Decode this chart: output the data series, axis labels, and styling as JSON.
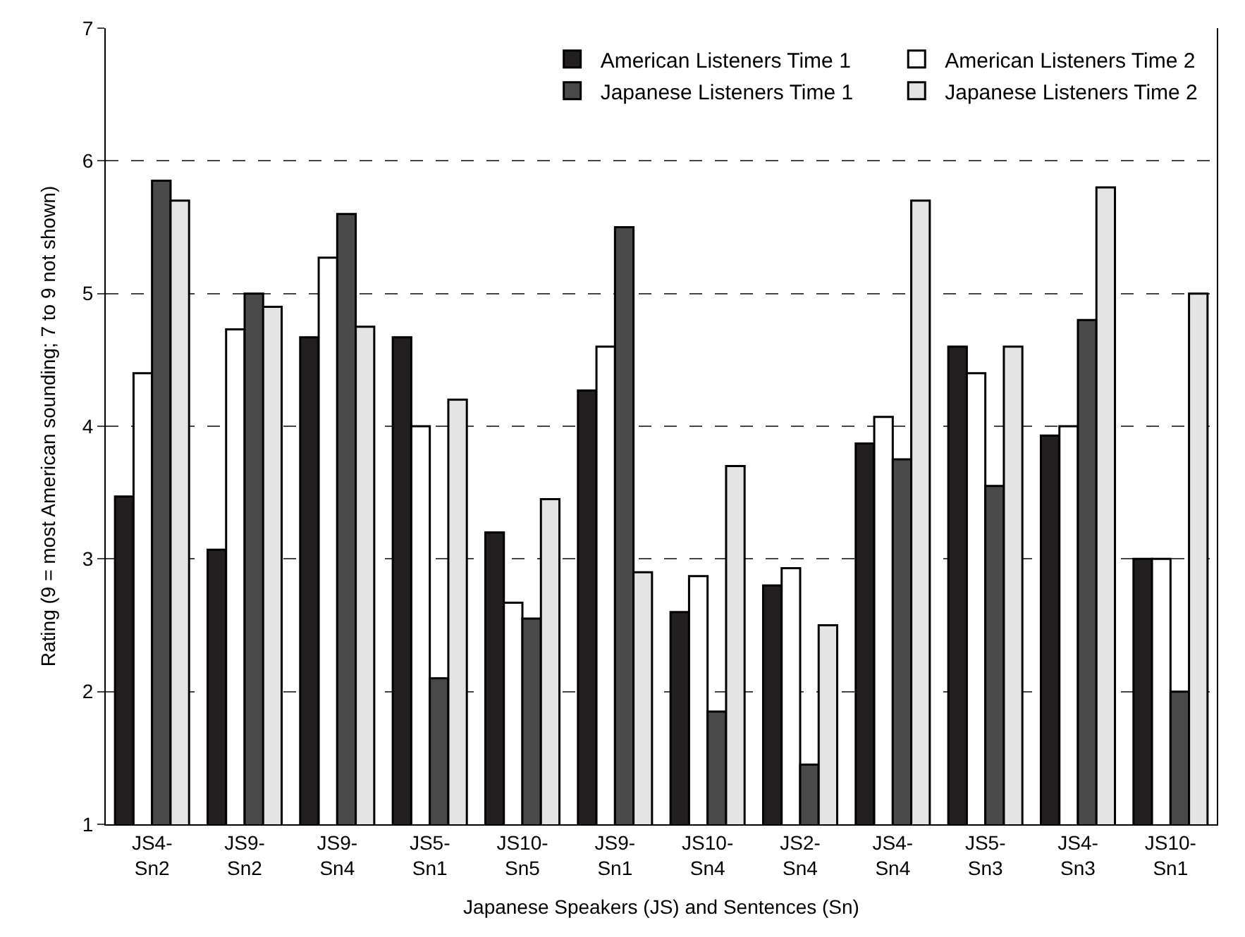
{
  "chart_data": {
    "type": "bar",
    "xlabel": "Japanese Speakers (JS) and Sentences (Sn)",
    "ylabel": "Rating (9 = most American sounding; 7 to 9 not shown)",
    "categories": [
      "JS4-Sn2",
      "JS9-Sn2",
      "JS9-Sn4",
      "JS5-Sn1",
      "JS10-Sn5",
      "JS9-Sn1",
      "JS10-Sn4",
      "JS2-Sn4",
      "JS4-Sn4",
      "JS5-Sn3",
      "JS4-Sn3",
      "JS10-Sn1"
    ],
    "series": [
      {
        "name": "American Listeners Time 1",
        "color": "#231f20",
        "values": [
          3.47,
          3.07,
          4.67,
          4.67,
          3.2,
          4.27,
          2.6,
          2.8,
          3.87,
          4.6,
          3.93,
          3.0
        ]
      },
      {
        "name": "American Listeners Time 2",
        "color": "#ffffff",
        "values": [
          4.4,
          4.73,
          5.27,
          4.0,
          2.67,
          4.6,
          2.87,
          2.93,
          4.07,
          4.4,
          4.0,
          3.0
        ]
      },
      {
        "name": "Japanese Listeners Time 1",
        "color": "#4a4a4a",
        "values": [
          5.85,
          5.0,
          5.6,
          2.1,
          2.55,
          5.5,
          1.85,
          1.45,
          3.75,
          3.55,
          4.8,
          2.0
        ]
      },
      {
        "name": "Japanese Listeners Time 2",
        "color": "#e4e4e4",
        "values": [
          5.7,
          4.9,
          4.75,
          4.2,
          3.45,
          2.9,
          3.7,
          2.5,
          5.7,
          4.6,
          5.8,
          5.0
        ]
      }
    ],
    "ylim": [
      1,
      7
    ],
    "yticks": [
      1,
      2,
      3,
      4,
      5,
      6,
      7
    ],
    "grid": "y",
    "legend": "top right"
  }
}
